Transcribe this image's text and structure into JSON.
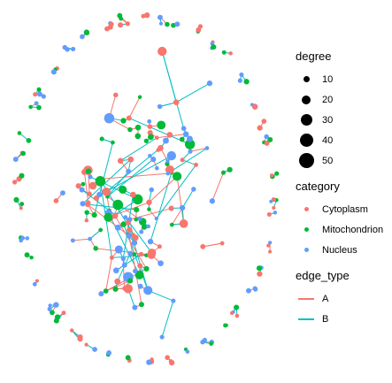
{
  "legend": {
    "degree": {
      "title": "degree",
      "items": [
        {
          "label": "10",
          "value": 10
        },
        {
          "label": "20",
          "value": 20
        },
        {
          "label": "30",
          "value": 30
        },
        {
          "label": "40",
          "value": 40
        },
        {
          "label": "50",
          "value": 50
        }
      ]
    },
    "category": {
      "title": "category",
      "items": [
        {
          "label": "Cytoplasm",
          "color": "#F8766D"
        },
        {
          "label": "Mitochondrion",
          "color": "#00BA38"
        },
        {
          "label": "Nucleus",
          "color": "#619CFF"
        }
      ]
    },
    "edge_type": {
      "title": "edge_type",
      "items": [
        {
          "label": "A",
          "color": "#F8766D"
        },
        {
          "label": "B",
          "color": "#00BFC4"
        }
      ]
    }
  }
}
